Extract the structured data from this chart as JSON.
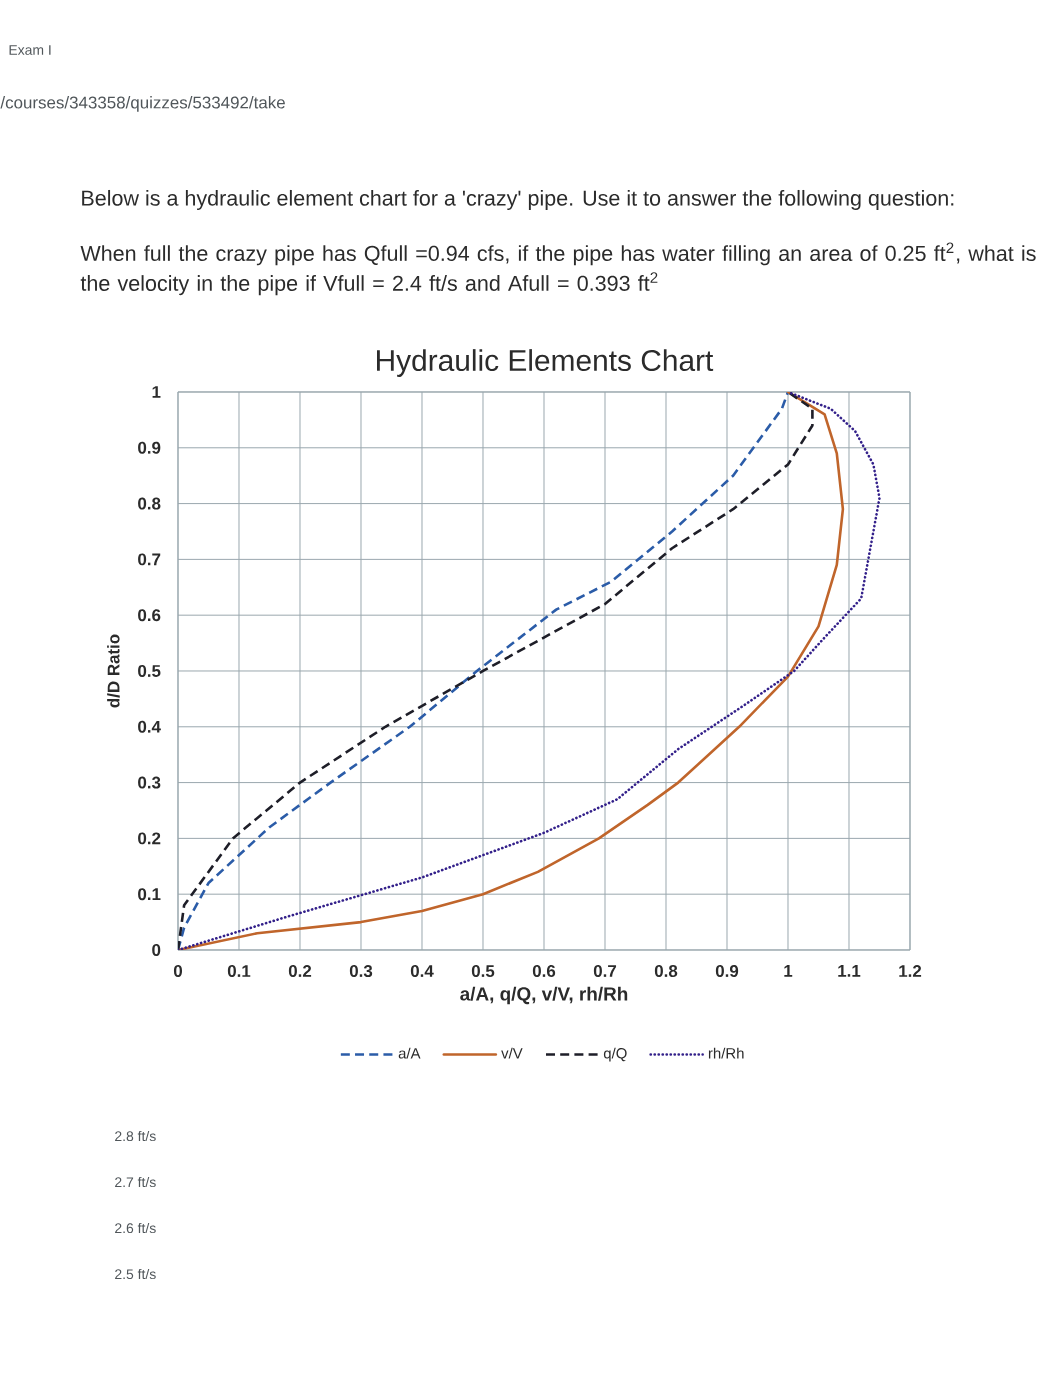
{
  "chart_data": {
    "type": "line",
    "title": "Hydraulic Elements Chart",
    "xlabel": "a/A, q/Q, v/V, rh/Rh",
    "ylabel": "d/D Ratio",
    "annotations": [
      "Exam I",
      "/courses/343358/quizzes/533492/take",
      "Below is a hydraulic element chart for a 'crazy' pipe. Use it to answer the following question:",
      "When full the crazy pipe has Qfull =0.94 cfs, if the pipe has water filling an area of 0.25 ft$^{2}$, what is the velocity in the pipe if Vfull = 2.4 ft/s and Afull = 0.393 ft$^{2}$",
      "2.8 ft/s",
      "2.7 ft/s",
      "2.6 ft/s",
      "2.5 ft/s"
    ],
    "series": [
      {
        "name": "a/A",
        "color": "#2b5ca8",
        "line_style": "dashed",
        "x": [
          0,
          0.01,
          0.05,
          0.15,
          0.25,
          0.38,
          0.49,
          0.62,
          0.71,
          0.81,
          0.91,
          0.99,
          1.0
        ],
        "values": [
          0,
          0.04,
          0.12,
          0.22,
          0.3,
          0.4,
          0.5,
          0.61,
          0.66,
          0.75,
          0.85,
          0.97,
          1.0
        ]
      },
      {
        "name": "v/V",
        "color": "#c0652b",
        "line_style": "solid",
        "x": [
          0,
          0.13,
          0.3,
          0.4,
          0.5,
          0.59,
          0.69,
          0.77,
          0.82,
          0.92,
          1.0,
          1.05,
          1.08,
          1.09,
          1.08,
          1.06,
          1.03,
          1.0
        ],
        "values": [
          0,
          0.03,
          0.05,
          0.07,
          0.1,
          0.14,
          0.2,
          0.26,
          0.3,
          0.4,
          0.49,
          0.58,
          0.69,
          0.79,
          0.89,
          0.96,
          0.98,
          1.0
        ]
      },
      {
        "name": "q/Q",
        "color": "#1e1e28",
        "line_style": "dashed",
        "x": [
          0,
          0.01,
          0.09,
          0.2,
          0.34,
          0.5,
          0.7,
          0.81,
          0.91,
          1.0,
          1.04,
          1.04,
          1.0
        ],
        "values": [
          0,
          0.08,
          0.2,
          0.3,
          0.4,
          0.5,
          0.62,
          0.72,
          0.79,
          0.87,
          0.94,
          0.97,
          1.0
        ]
      },
      {
        "name": "rh/Rh",
        "color": "#33208a",
        "line_style": "dotted",
        "x": [
          0,
          0.18,
          0.4,
          0.6,
          0.72,
          0.82,
          0.93,
          1.01,
          1.06,
          1.12,
          1.13,
          1.14,
          1.15,
          1.14,
          1.11,
          1.07,
          1.0
        ],
        "values": [
          0,
          0.06,
          0.13,
          0.21,
          0.27,
          0.36,
          0.44,
          0.5,
          0.56,
          0.63,
          0.69,
          0.75,
          0.81,
          0.87,
          0.93,
          0.97,
          1.0
        ]
      }
    ],
    "xlim": [
      0,
      1.2
    ],
    "ylim": [
      0,
      1
    ],
    "xticks": [
      0,
      0.1,
      0.2,
      0.3,
      0.4,
      0.5,
      0.6,
      0.7,
      0.8,
      0.9,
      1,
      1.1,
      1.2
    ],
    "yticks": [
      0,
      0.1,
      0.2,
      0.3,
      0.4,
      0.5,
      0.6,
      0.7,
      0.8,
      0.9,
      1
    ],
    "grid": true,
    "legend": "bottom",
    "marker": "none"
  }
}
